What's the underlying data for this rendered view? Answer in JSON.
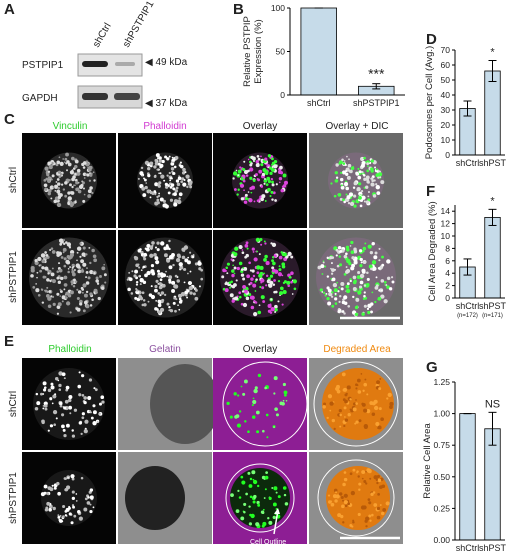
{
  "panel_labels": [
    "A",
    "B",
    "C",
    "D",
    "E",
    "F",
    "G"
  ],
  "blot": {
    "lanes": [
      "shCtrl",
      "shPSTPIP1"
    ],
    "rows": [
      "PSTPIP1",
      "GAPDH"
    ],
    "markers": [
      "◀ 49 kDa",
      "◀ 37 kDa"
    ]
  },
  "panel_c": {
    "columns": [
      "Vinculin",
      "Phalloidin",
      "Overlay",
      "Overlay + DIC"
    ],
    "rows": [
      "shCtrl",
      "shPSTPIP1"
    ]
  },
  "panel_e": {
    "columns": [
      "Phalloidin",
      "Gelatin",
      "Overlay",
      "Degraded Area"
    ],
    "rows": [
      "shCtrl",
      "shPSTPIP1"
    ],
    "callout": "Cell Outline"
  },
  "chart_data": [
    {
      "type": "bar",
      "y_label": [
        "Relative PSTPIP",
        "Expression (%)"
      ],
      "categories": [
        "shCtrl",
        "shPSTPIP1"
      ],
      "values": [
        100,
        10
      ],
      "errors": [
        0,
        3
      ],
      "annotations": [
        null,
        "***"
      ],
      "color": "#c6dbe9",
      "ylim": [
        0,
        100
      ],
      "yticks": [
        0,
        50,
        100
      ]
    },
    {
      "type": "bar",
      "y_label": [
        "Podosomes per Cell (Avg.)"
      ],
      "categories": [
        "shCtrl",
        "shPST"
      ],
      "values": [
        31,
        56
      ],
      "errors": [
        5,
        7
      ],
      "annotations": [
        null,
        "*"
      ],
      "color": "#c6dbe9",
      "ylim": [
        0,
        70
      ],
      "yticks": [
        0,
        10,
        20,
        30,
        40,
        50,
        60,
        70
      ]
    },
    {
      "type": "bar",
      "y_label": [
        "Cell Area Degraded (%)"
      ],
      "categories": [
        "shCtrl",
        "shPST"
      ],
      "category_notes": [
        "(n=172)",
        "(n=171)"
      ],
      "values": [
        5,
        13
      ],
      "errors": [
        1.3,
        1.3
      ],
      "annotations": [
        null,
        "*"
      ],
      "color": "#c6dbe9",
      "ylim": [
        0,
        15
      ],
      "yticks": [
        0,
        2,
        4,
        6,
        8,
        10,
        12,
        14
      ]
    },
    {
      "type": "bar",
      "y_label": [
        "Relative Cell Area"
      ],
      "categories": [
        "shCtrl",
        "shPST"
      ],
      "values": [
        1.0,
        0.88
      ],
      "errors": [
        0,
        0.13
      ],
      "annotations": [
        null,
        "NS"
      ],
      "color": "#c6dbe9",
      "ylim": [
        0,
        1.25
      ],
      "yticks": [
        {
          "value": 0,
          "label": "0.00"
        },
        {
          "value": 0.25,
          "label": "0.25"
        },
        {
          "value": 0.5,
          "label": "0.50"
        },
        {
          "value": 0.75,
          "label": "0.75"
        },
        {
          "value": 1.0,
          "label": "1.00"
        },
        {
          "value": 1.25,
          "label": "1.25"
        }
      ]
    }
  ]
}
